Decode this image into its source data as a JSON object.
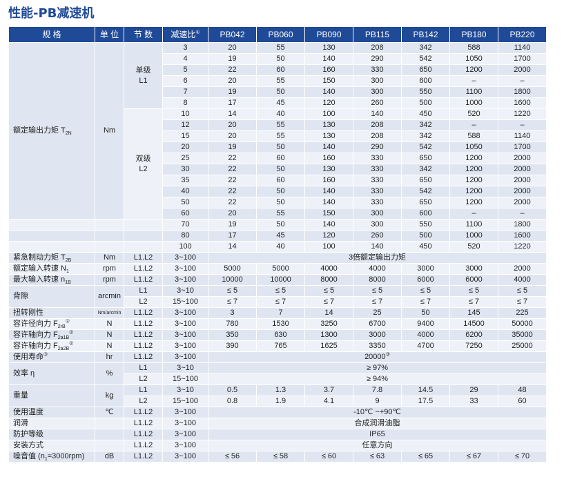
{
  "title": "性能-PB减速机",
  "header": {
    "spec": "规 格",
    "unit": "单 位",
    "stages": "节 数",
    "ratio": "减速比",
    "ratio_note": "①",
    "models": [
      "PB042",
      "PB060",
      "PB090",
      "PB115",
      "PB142",
      "PB180",
      "PB220"
    ]
  },
  "torque": {
    "label": "额定输出力矩 T",
    "label_sub": "2N",
    "unit": "Nm",
    "l1_label": "单级",
    "l1_code": "L1",
    "l2_label": "双级",
    "l2_code": "L2",
    "l1_rows": [
      {
        "ratio": "3",
        "v": [
          "20",
          "55",
          "130",
          "208",
          "342",
          "588",
          "1140"
        ]
      },
      {
        "ratio": "4",
        "v": [
          "19",
          "50",
          "140",
          "290",
          "542",
          "1050",
          "1700"
        ]
      },
      {
        "ratio": "5",
        "v": [
          "22",
          "60",
          "160",
          "330",
          "650",
          "1200",
          "2000"
        ]
      },
      {
        "ratio": "6",
        "v": [
          "20",
          "55",
          "150",
          "300",
          "600",
          "–",
          "–"
        ]
      },
      {
        "ratio": "7",
        "v": [
          "19",
          "50",
          "140",
          "300",
          "550",
          "1100",
          "1800"
        ]
      },
      {
        "ratio": "8",
        "v": [
          "17",
          "45",
          "120",
          "260",
          "500",
          "1000",
          "1600"
        ]
      }
    ],
    "l2_rows": [
      {
        "ratio": "10",
        "v": [
          "14",
          "40",
          "100",
          "140",
          "450",
          "520",
          "1220"
        ]
      },
      {
        "ratio": "12",
        "v": [
          "20",
          "55",
          "130",
          "208",
          "342",
          "–",
          "–"
        ]
      },
      {
        "ratio": "15",
        "v": [
          "20",
          "55",
          "130",
          "208",
          "342",
          "588",
          "1140"
        ]
      },
      {
        "ratio": "20",
        "v": [
          "19",
          "50",
          "140",
          "290",
          "542",
          "1050",
          "1700"
        ]
      },
      {
        "ratio": "25",
        "v": [
          "22",
          "60",
          "160",
          "330",
          "650",
          "1200",
          "2000"
        ]
      },
      {
        "ratio": "30",
        "v": [
          "22",
          "50",
          "130",
          "330",
          "342",
          "1200",
          "2000"
        ]
      },
      {
        "ratio": "35",
        "v": [
          "22",
          "60",
          "160",
          "330",
          "650",
          "1200",
          "2000"
        ]
      },
      {
        "ratio": "40",
        "v": [
          "22",
          "50",
          "140",
          "330",
          "542",
          "1200",
          "2000"
        ]
      },
      {
        "ratio": "50",
        "v": [
          "22",
          "50",
          "140",
          "330",
          "650",
          "1200",
          "2000"
        ]
      },
      {
        "ratio": "60",
        "v": [
          "20",
          "55",
          "150",
          "300",
          "600",
          "–",
          "–"
        ]
      }
    ],
    "extra_rows": [
      {
        "ratio": "70",
        "v": [
          "19",
          "50",
          "140",
          "300",
          "550",
          "1100",
          "1800"
        ]
      },
      {
        "ratio": "80",
        "v": [
          "17",
          "45",
          "120",
          "260",
          "500",
          "1000",
          "1600"
        ]
      },
      {
        "ratio": "100",
        "v": [
          "14",
          "40",
          "100",
          "140",
          "450",
          "520",
          "1220"
        ]
      }
    ]
  },
  "rows": {
    "emergency": {
      "label": "紧急制动力矩 T",
      "sub": "2B",
      "unit": "Nm",
      "stage": "L1.L2",
      "ratio": "3~100",
      "value": "3倍额定输出力矩"
    },
    "rated_speed": {
      "label": "额定输入转速 N",
      "sub": "1",
      "unit": "rpm",
      "stage": "L1.L2",
      "ratio": "3~100",
      "v": [
        "5000",
        "5000",
        "4000",
        "4000",
        "3000",
        "3000",
        "2000"
      ]
    },
    "max_speed": {
      "label": "最大输入转速 n",
      "sub": "1B",
      "unit": "rpm",
      "stage": "L1.L2",
      "ratio": "3~100",
      "v": [
        "10000",
        "10000",
        "8000",
        "8000",
        "6000",
        "6000",
        "4000"
      ]
    },
    "backlash": {
      "label": "背隙",
      "unit": "arcmin",
      "r1": {
        "stage": "L1",
        "ratio": "3~10",
        "v": [
          "≤ 5",
          "≤ 5",
          "≤ 5",
          "≤ 5",
          "≤ 5",
          "≤ 5",
          "≤ 5"
        ]
      },
      "r2": {
        "stage": "L2",
        "ratio": "15~100",
        "v": [
          "≤ 7",
          "≤ 7",
          "≤ 7",
          "≤ 7",
          "≤ 7",
          "≤ 7",
          "≤ 7"
        ]
      }
    },
    "stiffness": {
      "label": "扭转刚性",
      "unit": "Nm/arcmin",
      "stage": "L1.L2",
      "ratio": "3~100",
      "v": [
        "3",
        "7",
        "14",
        "25",
        "50",
        "145",
        "225"
      ]
    },
    "radial": {
      "label": "容许径向力 F",
      "sub": "2rB",
      "note": "②",
      "unit": "N",
      "stage": "L1.L2",
      "ratio": "3~100",
      "v": [
        "780",
        "1530",
        "3250",
        "6700",
        "9400",
        "14500",
        "50000"
      ]
    },
    "axial1": {
      "label": "容许轴向力 F",
      "sub": "2a1B",
      "note": "②",
      "unit": "N",
      "stage": "L1.L2",
      "ratio": "3~100",
      "v": [
        "350",
        "630",
        "1300",
        "3000",
        "4000",
        "6200",
        "35000"
      ]
    },
    "axial2": {
      "label": "容许轴向力 F",
      "sub": "2a2B",
      "note": "②",
      "unit": "N",
      "stage": "L1.L2",
      "ratio": "3~100",
      "v": [
        "390",
        "765",
        "1625",
        "3350",
        "4700",
        "7250",
        "25000"
      ]
    },
    "life": {
      "label": "使用寿命",
      "unit": "hr",
      "stage": "L1.L2",
      "ratio": "3~100",
      "value": "20000",
      "note": "③"
    },
    "efficiency": {
      "label": "效率 η",
      "unit": "%",
      "r1": {
        "stage": "L1",
        "ratio": "3~10",
        "value": "≥ 97%"
      },
      "r2": {
        "stage": "L2",
        "ratio": "15~100",
        "value": "≥ 94%"
      }
    },
    "weight": {
      "label": "重量",
      "unit": "kg",
      "r1": {
        "stage": "L1",
        "ratio": "3~10",
        "v": [
          "0.5",
          "1.3",
          "3.7",
          "7.8",
          "14.5",
          "29",
          "48"
        ]
      },
      "r2": {
        "stage": "L2",
        "ratio": "15~100",
        "v": [
          "0.8",
          "1.9",
          "4.1",
          "9",
          "17.5",
          "33",
          "60"
        ]
      }
    },
    "temp": {
      "label": "使用温度",
      "unit": "℃",
      "stage": "L1.L2",
      "ratio": "3~100",
      "value": "-10℃ ~+90℃"
    },
    "lube": {
      "label": "润滑",
      "unit": "",
      "stage": "L1.L2",
      "ratio": "3~100",
      "value": "合成润滑油脂"
    },
    "protection": {
      "label": "防护等级",
      "unit": "",
      "stage": "L1.L2",
      "ratio": "3~100",
      "value": "IP65"
    },
    "mounting": {
      "label": "安装方式",
      "unit": "",
      "stage": "L1.L2",
      "ratio": "3~100",
      "value": "任意方向"
    },
    "noise": {
      "label": "噪音值 (n",
      "sub": "1",
      "label_tail": "=3000rpm)",
      "unit": "dB",
      "stage": "L1.L2",
      "ratio": "3~100",
      "v": [
        "≤ 56",
        "≤ 58",
        "≤ 60",
        "≤ 63",
        "≤ 65",
        "≤ 67",
        "≤ 70"
      ]
    }
  }
}
